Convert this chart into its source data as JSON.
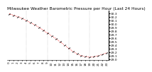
{
  "title": "Milwaukee Weather Barometric Pressure per Hour (Last 24 Hours)",
  "hours": [
    0,
    1,
    2,
    3,
    4,
    5,
    6,
    7,
    8,
    9,
    10,
    11,
    12,
    13,
    14,
    15,
    16,
    17,
    18,
    19,
    20,
    21,
    22,
    23
  ],
  "pressure": [
    30.28,
    30.24,
    30.2,
    30.15,
    30.09,
    30.03,
    29.97,
    29.9,
    29.82,
    29.74,
    29.66,
    29.58,
    29.49,
    29.4,
    29.31,
    29.22,
    29.15,
    29.1,
    29.07,
    29.06,
    29.07,
    29.1,
    29.14,
    29.18
  ],
  "ylim": [
    28.98,
    30.38
  ],
  "yticks": [
    29.0,
    29.1,
    29.2,
    29.3,
    29.4,
    29.5,
    29.6,
    29.7,
    29.8,
    29.9,
    30.0,
    30.1,
    30.2,
    30.3
  ],
  "ytick_labels": [
    "29.0",
    "29.1",
    "29.2",
    "29.3",
    "29.4",
    "29.5",
    "29.6",
    "29.7",
    "29.8",
    "29.9",
    "30.0",
    "30.1",
    "30.2",
    "30.3"
  ],
  "grid_hours": [
    4,
    9,
    14,
    19
  ],
  "line_color": "#ff0000",
  "marker_color": "#000000",
  "bg_color": "#ffffff",
  "grid_color": "#888888",
  "title_fontsize": 4.2,
  "tick_fontsize": 3.2,
  "xlabel_fontsize": 3.0,
  "marker_size": 2.5,
  "line_width": 0.6
}
